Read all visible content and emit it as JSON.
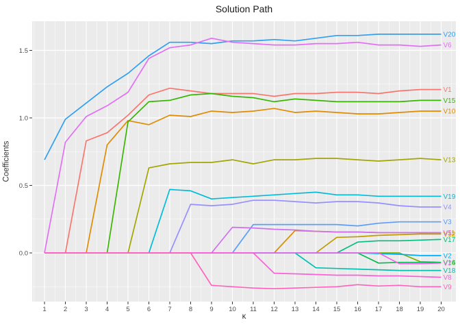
{
  "theme": {
    "background": "#FFFFFF",
    "panel_background": "#EBEBEB",
    "grid_major": "#FFFFFF",
    "grid_minor": "#FFFFFF",
    "tick_mark_color": "#333333",
    "tick_label_color": "#4D4D4D",
    "title_color": "#1A1A1A"
  },
  "chart_data": {
    "type": "line",
    "title": "Solution Path",
    "xlabel": "κ",
    "ylabel": "Coefficients",
    "x": [
      1,
      2,
      3,
      4,
      5,
      6,
      7,
      8,
      9,
      10,
      11,
      12,
      13,
      14,
      15,
      16,
      17,
      18,
      19,
      20
    ],
    "xlim": [
      1,
      20
    ],
    "ylim": [
      -0.34,
      1.71
    ],
    "x_tick_labels": [
      "1",
      "2",
      "3",
      "4",
      "5",
      "6",
      "7",
      "8",
      "9",
      "10",
      "11",
      "12",
      "13",
      "14",
      "15",
      "16",
      "17",
      "18",
      "19",
      "20"
    ],
    "y_ticks": {
      "values": [
        0.0,
        0.5,
        1.0,
        1.5
      ],
      "labels": [
        "0.0",
        "0.5",
        "1.0",
        "1.5"
      ]
    },
    "y_minor_ticks": [
      -0.25,
      0.25,
      0.75,
      1.25
    ],
    "grid": "major and minor, white on gray panel",
    "legend_position": "direct labels at right end of each line",
    "series": [
      {
        "name": "V1",
        "color": "#F8766D",
        "values": [
          0,
          0,
          0.83,
          0.89,
          1.02,
          1.17,
          1.22,
          1.2,
          1.18,
          1.18,
          1.18,
          1.16,
          1.18,
          1.18,
          1.19,
          1.19,
          1.18,
          1.2,
          1.21,
          1.21
        ]
      },
      {
        "name": "V10",
        "color": "#E08B00",
        "values": [
          0,
          0,
          0,
          0.8,
          0.98,
          0.95,
          1.02,
          1.01,
          1.05,
          1.04,
          1.05,
          1.07,
          1.04,
          1.05,
          1.04,
          1.03,
          1.03,
          1.04,
          1.05,
          1.05
        ]
      },
      {
        "name": "V11",
        "color": "#D89000",
        "values": [
          0,
          0,
          0,
          0,
          0,
          0,
          0,
          0,
          0,
          0,
          0,
          0,
          0.165,
          0.16,
          0.155,
          0.155,
          0.15,
          0.15,
          0.15,
          0.15
        ]
      },
      {
        "name": "V12",
        "color": "#C09B00",
        "values": [
          0,
          0,
          0,
          0,
          0,
          0,
          0,
          0,
          0,
          0,
          0,
          0,
          0,
          0,
          0.115,
          0.12,
          0.13,
          0.135,
          0.14,
          0.14
        ]
      },
      {
        "name": "V13",
        "color": "#A3A500",
        "values": [
          0,
          0,
          0,
          0,
          0,
          0.63,
          0.66,
          0.67,
          0.67,
          0.69,
          0.66,
          0.69,
          0.69,
          0.7,
          0.7,
          0.69,
          0.68,
          0.69,
          0.7,
          0.69
        ]
      },
      {
        "name": "V14",
        "color": "#7CAE00",
        "values": [
          0,
          0,
          0,
          0,
          0,
          0,
          0,
          0,
          0,
          0,
          0,
          0,
          0,
          0,
          0,
          0,
          0,
          0,
          -0.065,
          -0.07
        ]
      },
      {
        "name": "V15",
        "color": "#39B600",
        "values": [
          0,
          0,
          0,
          0,
          0.97,
          1.12,
          1.13,
          1.17,
          1.18,
          1.16,
          1.15,
          1.12,
          1.14,
          1.13,
          1.12,
          1.12,
          1.12,
          1.12,
          1.13,
          1.13
        ]
      },
      {
        "name": "V16",
        "color": "#00BB4E",
        "values": [
          0,
          0,
          0,
          0,
          0,
          0,
          0,
          0,
          0,
          0,
          0,
          0,
          0,
          0,
          0,
          0,
          -0.075,
          -0.07,
          -0.07,
          -0.07
        ]
      },
      {
        "name": "V17",
        "color": "#00BF7D",
        "values": [
          0,
          0,
          0,
          0,
          0,
          0,
          0,
          0,
          0,
          0,
          0,
          0,
          0,
          0,
          0,
          0.08,
          0.09,
          0.09,
          0.095,
          0.1
        ]
      },
      {
        "name": "V18",
        "color": "#00C0AF",
        "values": [
          0,
          0,
          0,
          0,
          0,
          0,
          0,
          0,
          0,
          0,
          0,
          0,
          0,
          -0.11,
          -0.115,
          -0.12,
          -0.125,
          -0.13,
          -0.13,
          -0.13
        ]
      },
      {
        "name": "V19",
        "color": "#00BCD8",
        "values": [
          0,
          0,
          0,
          0,
          0,
          0,
          0.47,
          0.46,
          0.4,
          0.41,
          0.42,
          0.43,
          0.44,
          0.45,
          0.43,
          0.43,
          0.42,
          0.42,
          0.42,
          0.42
        ]
      },
      {
        "name": "V2",
        "color": "#00B0F6",
        "values": [
          0,
          0,
          0,
          0,
          0,
          0,
          0,
          0,
          0,
          0,
          0,
          0,
          0,
          0,
          0,
          0,
          -0.005,
          -0.01,
          -0.02,
          -0.02
        ]
      },
      {
        "name": "V20",
        "color": "#2E9FF2",
        "values": [
          0.69,
          0.99,
          1.11,
          1.23,
          1.33,
          1.46,
          1.56,
          1.56,
          1.55,
          1.57,
          1.57,
          1.58,
          1.57,
          1.59,
          1.61,
          1.61,
          1.62,
          1.62,
          1.62,
          1.62
        ]
      },
      {
        "name": "V3",
        "color": "#5B9DF9",
        "values": [
          0,
          0,
          0,
          0,
          0,
          0,
          0,
          0,
          0,
          0,
          0.21,
          0.21,
          0.21,
          0.21,
          0.21,
          0.2,
          0.22,
          0.23,
          0.23,
          0.23
        ]
      },
      {
        "name": "V4",
        "color": "#9590FF",
        "values": [
          0,
          0,
          0,
          0,
          0,
          0,
          0,
          0.36,
          0.35,
          0.36,
          0.39,
          0.39,
          0.38,
          0.37,
          0.38,
          0.38,
          0.37,
          0.35,
          0.34,
          0.34
        ]
      },
      {
        "name": "V5",
        "color": "#CE70F0",
        "values": [
          0,
          0,
          0,
          0,
          0,
          0,
          0,
          0,
          0,
          0.19,
          0.185,
          0.175,
          0.17,
          0.16,
          0.155,
          0.155,
          0.15,
          0.15,
          0.15,
          0.15
        ]
      },
      {
        "name": "V6",
        "color": "#E36EF6",
        "values": [
          0,
          0.82,
          1.01,
          1.09,
          1.19,
          1.44,
          1.52,
          1.54,
          1.59,
          1.56,
          1.55,
          1.54,
          1.54,
          1.55,
          1.55,
          1.56,
          1.54,
          1.54,
          1.53,
          1.54
        ]
      },
      {
        "name": "V7",
        "color": "#F166E8",
        "values": [
          0,
          0,
          0,
          0,
          0,
          0,
          0,
          0,
          0,
          0,
          0,
          0,
          0,
          0,
          0,
          0,
          0,
          -0.08,
          -0.08,
          -0.075
        ]
      },
      {
        "name": "V8",
        "color": "#FB61D7",
        "values": [
          0,
          0,
          0,
          0,
          0,
          0,
          0,
          0,
          0,
          0,
          0,
          -0.15,
          -0.155,
          -0.16,
          -0.165,
          -0.165,
          -0.17,
          -0.17,
          -0.175,
          -0.18
        ]
      },
      {
        "name": "V9",
        "color": "#FF62BC",
        "values": [
          0,
          0,
          0,
          0,
          0,
          0,
          0,
          0,
          -0.24,
          -0.25,
          -0.26,
          -0.265,
          -0.26,
          -0.255,
          -0.25,
          -0.235,
          -0.245,
          -0.24,
          -0.25,
          -0.25
        ]
      }
    ]
  }
}
